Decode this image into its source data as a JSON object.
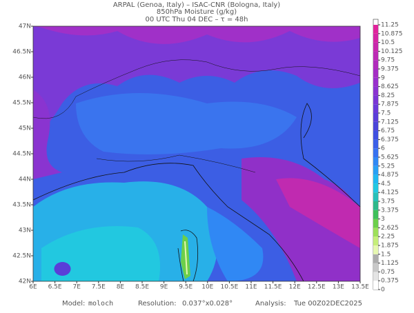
{
  "header": {
    "line1": "ARPAL (Genoa, Italy)  –  ISAC-CNR (Bologna, Italy)",
    "line2": "850hPa Moisture (g/kg)",
    "line3": "00 UTC Thu 04 DEC  –  τ = 48h"
  },
  "map": {
    "xlim": [
      6,
      13.5
    ],
    "ylim": [
      42,
      47
    ],
    "xticks": [
      {
        "value": 6,
        "label": "6E"
      },
      {
        "value": 6.5,
        "label": "6.5E"
      },
      {
        "value": 7,
        "label": "7E"
      },
      {
        "value": 7.5,
        "label": "7.5E"
      },
      {
        "value": 8,
        "label": "8E"
      },
      {
        "value": 8.5,
        "label": "8.5E"
      },
      {
        "value": 9,
        "label": "9E"
      },
      {
        "value": 9.5,
        "label": "9.5E"
      },
      {
        "value": 10,
        "label": "10E"
      },
      {
        "value": 10.5,
        "label": "10.5E"
      },
      {
        "value": 11,
        "label": "11E"
      },
      {
        "value": 11.5,
        "label": "11.5E"
      },
      {
        "value": 12,
        "label": "12E"
      },
      {
        "value": 12.5,
        "label": "12.5E"
      },
      {
        "value": 13,
        "label": "13E"
      },
      {
        "value": 13.5,
        "label": "13.5E"
      }
    ],
    "yticks": [
      {
        "value": 42,
        "label": "42N"
      },
      {
        "value": 42.5,
        "label": "42.5N"
      },
      {
        "value": 43,
        "label": "43N"
      },
      {
        "value": 43.5,
        "label": "43.5N"
      },
      {
        "value": 44,
        "label": "44N"
      },
      {
        "value": 44.5,
        "label": "44.5N"
      },
      {
        "value": 45,
        "label": "45N"
      },
      {
        "value": 45.5,
        "label": "45.5N"
      },
      {
        "value": 46,
        "label": "46N"
      },
      {
        "value": 46.5,
        "label": "46.5N"
      },
      {
        "value": 47,
        "label": "47N"
      }
    ]
  },
  "colorbar": {
    "ticks": [
      0,
      0.375,
      0.75,
      1.125,
      1.5,
      1.875,
      2.25,
      2.625,
      3,
      3.375,
      3.75,
      4.125,
      4.5,
      4.875,
      5.25,
      5.625,
      6,
      6.375,
      6.75,
      7.125,
      7.5,
      7.875,
      8.25,
      8.625,
      9,
      9.375,
      9.75,
      10.125,
      10.5,
      10.875,
      11.25
    ],
    "colors": [
      "#ffffff",
      "#e4e4e4",
      "#c8c8c8",
      "#acacac",
      "#e6f7b0",
      "#c6ee7a",
      "#9ee05a",
      "#6ccf4a",
      "#3fbf5a",
      "#2fb88a",
      "#28c0b8",
      "#22c8e0",
      "#20b8f0",
      "#28a0f4",
      "#3088f4",
      "#3872f0",
      "#3c60e8",
      "#4050e0",
      "#4a44d8",
      "#5a3ed8",
      "#6a3ad8",
      "#7a36d4",
      "#8a34d0",
      "#9830cc",
      "#a42ec4",
      "#b02cbc",
      "#bc2ab4",
      "#c828ac",
      "#d426a4",
      "#e0249c"
    ]
  },
  "footer": {
    "model_label": "Model:",
    "model": "moloch",
    "resolution_label": "Resolution:",
    "resolution": "0.037°x0.028°",
    "analysis_label": "Analysis:",
    "analysis": "Tue 00Z02DEC2025"
  }
}
